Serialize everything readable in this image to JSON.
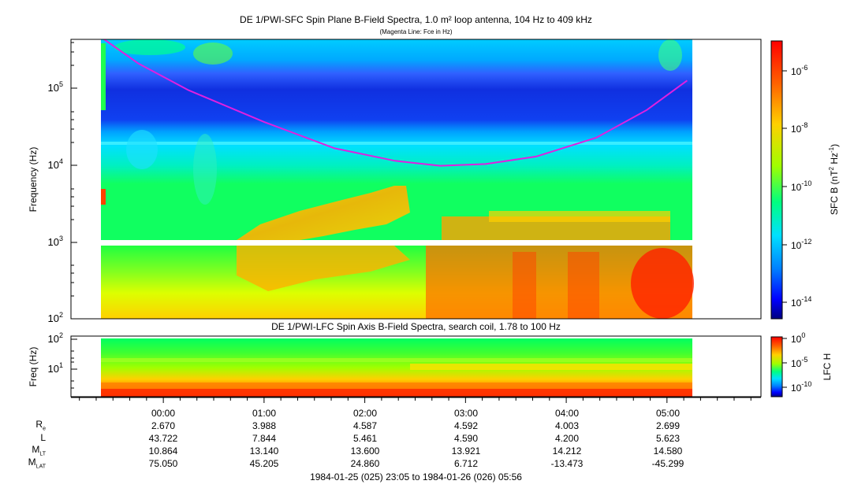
{
  "top_panel": {
    "title": "DE 1/PWI-SFC  Spin Plane B-Field Spectra, 1.0 m² loop antenna, 104 Hz to 409 kHz",
    "subtitle": "(Magenta Line: Fce in Hz)",
    "ylabel": "Frequency (Hz)",
    "colorbar_label_text": "SFC B (nT",
    "colorbar_label_sup1": "2",
    "colorbar_label_mid": " Hz",
    "colorbar_label_sup2": "-1",
    "colorbar_label_end": ")",
    "yticks": [
      {
        "base": "10",
        "exp": "2"
      },
      {
        "base": "10",
        "exp": "3"
      },
      {
        "base": "10",
        "exp": "4"
      },
      {
        "base": "10",
        "exp": "5"
      }
    ],
    "colorbar_ticks": [
      {
        "base": "10",
        "exp": "-6"
      },
      {
        "base": "10",
        "exp": "-8"
      },
      {
        "base": "10",
        "exp": "-10"
      },
      {
        "base": "10",
        "exp": "-12"
      },
      {
        "base": "10",
        "exp": "-14"
      }
    ]
  },
  "bottom_panel": {
    "title": "DE 1/PWI-LFC  Spin Axis B-Field Spectra, search coil, 1.78 to 100 Hz",
    "ylabel": "Freq (Hz)",
    "colorbar_label": "LFC H",
    "yticks": [
      {
        "base": "10",
        "exp": "1"
      },
      {
        "base": "10",
        "exp": "2"
      }
    ],
    "colorbar_ticks": [
      {
        "base": "10",
        "exp": "0"
      },
      {
        "base": "10",
        "exp": "-5"
      },
      {
        "base": "10",
        "exp": "-10"
      }
    ]
  },
  "ephemeris": {
    "times": [
      "00:00",
      "01:00",
      "02:00",
      "03:00",
      "04:00",
      "05:00"
    ],
    "rows": [
      {
        "label": "R",
        "sub": "e",
        "values": [
          "2.670",
          "3.988",
          "4.587",
          "4.592",
          "4.003",
          "2.699"
        ]
      },
      {
        "label": "L",
        "sub": "",
        "values": [
          "43.722",
          "7.844",
          "5.461",
          "4.590",
          "4.200",
          "5.623"
        ]
      },
      {
        "label": "M",
        "sub": "LT",
        "values": [
          "10.864",
          "13.140",
          "13.600",
          "13.921",
          "14.212",
          "14.580"
        ]
      },
      {
        "label": "M",
        "sub": "LAT",
        "values": [
          "75.050",
          "45.205",
          "24.860",
          "6.712",
          "-13.473",
          "-45.299"
        ]
      }
    ],
    "date_range": "1984-01-25 (025) 23:05 to 1984-01-26 (026) 05:56"
  },
  "chart_data": [
    {
      "type": "heatmap",
      "title": "DE 1/PWI-SFC  Spin Plane B-Field Spectra, 1.0 m² loop antenna, 104 Hz to 409 kHz",
      "subtitle": "(Magenta Line: Fce in Hz)",
      "ylabel": "Frequency (Hz)",
      "y_scale": "log",
      "ylim": [
        100,
        409000
      ],
      "xlim_hours": [
        -0.917,
        5.933
      ],
      "data_extent_hours": [
        -0.6,
        5.25
      ],
      "colorbar_label": "SFC B (nT^2 Hz^-1)",
      "colorbar_scale": "log",
      "colorbar_range": [
        1e-15,
        1e-05
      ],
      "colormap": [
        "#000080",
        "#0000ff",
        "#0080ff",
        "#00e0ff",
        "#00ff80",
        "#80ff00",
        "#ffff00",
        "#ffa000",
        "#ff4000",
        "#ff0000"
      ],
      "data_gap_hz": [
        900,
        1050
      ],
      "series": [
        {
          "name": "Fce",
          "color": "#e020e0",
          "x_hours": [
            -0.6,
            -0.25,
            0.25,
            1.0,
            1.7,
            2.3,
            2.75,
            3.2,
            3.7,
            4.3,
            4.8,
            5.2
          ],
          "y_hz": [
            420000,
            200000,
            90000,
            35000,
            16000,
            11000,
            9500,
            10000,
            12500,
            22000,
            50000,
            120000
          ]
        }
      ]
    },
    {
      "type": "heatmap",
      "title": "DE 1/PWI-LFC  Spin Axis B-Field Spectra, search coil, 1.78 to 100 Hz",
      "ylabel": "Freq (Hz)",
      "y_scale": "log",
      "ylim": [
        1.78,
        100
      ],
      "xlim_hours": [
        -0.917,
        5.933
      ],
      "colorbar_label": "LFC H",
      "colorbar_scale": "log",
      "colorbar_range": [
        1e-12,
        1
      ],
      "colormap": [
        "#000080",
        "#0000ff",
        "#0080ff",
        "#00e0ff",
        "#00ff80",
        "#80ff00",
        "#ffff00",
        "#ffa000",
        "#ff4000",
        "#ff0000"
      ]
    }
  ]
}
